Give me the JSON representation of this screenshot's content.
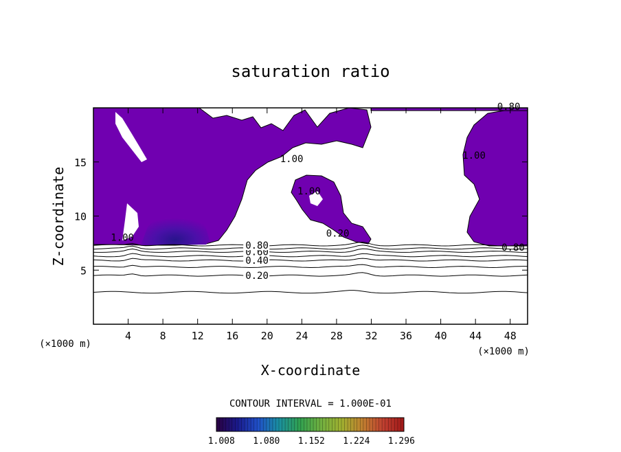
{
  "chart_data": {
    "type": "contour",
    "title": "saturation ratio",
    "xlabel": "X-coordinate",
    "ylabel": "Z-coordinate",
    "x_unit_label": "(×1000 m)",
    "xlim": [
      0,
      50
    ],
    "ylim": [
      0,
      20
    ],
    "x_ticks": [
      4,
      8,
      12,
      16,
      20,
      24,
      28,
      32,
      36,
      40,
      44,
      48
    ],
    "y_ticks": [
      5,
      10,
      15
    ],
    "x_tick_labels": [
      "4",
      "8",
      "12",
      "16",
      "20",
      "24",
      "28",
      "32",
      "36",
      "40",
      "44",
      "48"
    ],
    "y_tick_labels": [
      "5",
      "10",
      "15"
    ],
    "contour_interval_text": "CONTOUR INTERVAL = 1.000E-01",
    "contour_lines": [
      {
        "level": 0.2,
        "z": 4.5,
        "label": "0.20",
        "label_x": 17.5
      },
      {
        "level": 0.3,
        "z": 5.3,
        "label": "",
        "label_x": null
      },
      {
        "level": 0.4,
        "z": 5.9,
        "label": "0.40",
        "label_x": 17.5
      },
      {
        "level": 0.5,
        "z": 6.3,
        "label": "",
        "label_x": null
      },
      {
        "level": 0.6,
        "z": 6.7,
        "label": "0.60",
        "label_x": 17.5
      },
      {
        "level": 0.7,
        "z": 7.0,
        "label": "",
        "label_x": null
      },
      {
        "level": 0.8,
        "z": 7.3,
        "label": "0.80",
        "label_x": 17.5
      }
    ],
    "extra_labels": [
      {
        "text": "1.00",
        "x": 2.0,
        "z": 7.7
      },
      {
        "text": "1.00",
        "x": 21.5,
        "z": 15.0
      },
      {
        "text": "1.00",
        "x": 23.5,
        "z": 12.0
      },
      {
        "text": "1.00",
        "x": 42.5,
        "z": 15.3
      },
      {
        "text": "0.80",
        "x": 47.0,
        "z": 6.8
      },
      {
        "text": "0.80",
        "x": 46.5,
        "z": 19.8
      },
      {
        "text": "0.20",
        "x": 26.8,
        "z": 8.1
      }
    ],
    "colorbar": {
      "tick_labels": [
        "1.008",
        "1.080",
        "1.152",
        "1.224",
        "1.296"
      ],
      "range": [
        1.0,
        1.3
      ],
      "colors": [
        "#2a0040",
        "#1a1a8c",
        "#2050c8",
        "#1a8fa0",
        "#30a050",
        "#70b040",
        "#a0b030",
        "#c08030",
        "#c04030",
        "#a01818"
      ]
    },
    "fill_color": "#7000b0"
  }
}
